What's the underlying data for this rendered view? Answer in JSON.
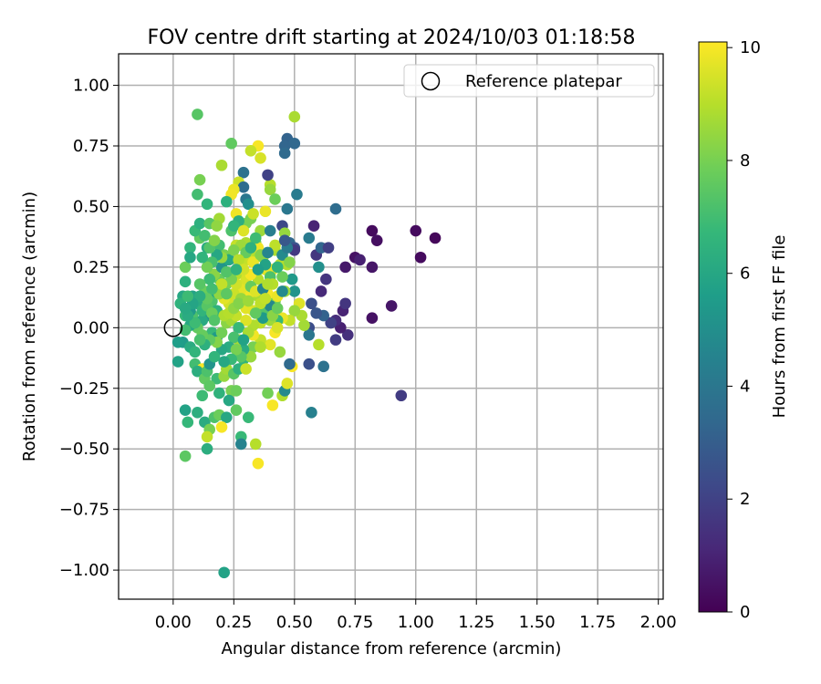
{
  "chart_data": {
    "type": "scatter",
    "title": "FOV centre drift starting at 2024/10/03 01:18:58",
    "xlabel": "Angular distance from reference (arcmin)",
    "ylabel": "Rotation from reference (arcmin)",
    "xlim": [
      -0.225,
      2.02
    ],
    "ylim": [
      -1.12,
      1.13
    ],
    "x_ticks": [
      0.0,
      0.25,
      0.5,
      0.75,
      1.0,
      1.25,
      1.5,
      1.75,
      2.0
    ],
    "x_tick_labels": [
      "0.00",
      "0.25",
      "0.50",
      "0.75",
      "1.00",
      "1.25",
      "1.50",
      "1.75",
      "2.00"
    ],
    "y_ticks": [
      1.0,
      0.75,
      0.5,
      0.25,
      0.0,
      -0.25,
      -0.5,
      -0.75,
      -1.0
    ],
    "y_tick_labels": [
      "1.00",
      "0.75",
      "0.50",
      "0.25",
      "0.00",
      "−0.25",
      "−0.50",
      "−0.75",
      "−1.00"
    ],
    "grid": true,
    "legend": {
      "position": "top-right",
      "entries": [
        "Reference platepar"
      ]
    },
    "reference_point": {
      "x": 0.0,
      "y": 0.0,
      "label": "Reference platepar"
    },
    "colorbar": {
      "label": "Hours from first FF file",
      "range": [
        0,
        10.1
      ],
      "ticks": [
        0,
        2,
        4,
        6,
        8,
        10
      ],
      "tick_labels": [
        "0",
        "2",
        "4",
        "6",
        "8",
        "10"
      ],
      "colormap": "viridis",
      "colors": [
        "#440154",
        "#482878",
        "#3e4989",
        "#31688e",
        "#26828e",
        "#1f9e89",
        "#35b779",
        "#6ece58",
        "#b5de2b",
        "#fde725"
      ]
    },
    "points": [
      [
        0.47,
        0.78,
        3.2
      ],
      [
        0.5,
        0.76,
        3.4
      ],
      [
        0.46,
        0.75,
        3.3
      ],
      [
        0.46,
        0.72,
        3.5
      ],
      [
        0.35,
        0.75,
        10.0
      ],
      [
        0.24,
        0.76,
        7.6
      ],
      [
        0.1,
        0.88,
        7.4
      ],
      [
        0.5,
        0.87,
        8.8
      ],
      [
        0.36,
        0.7,
        9.5
      ],
      [
        0.32,
        0.73,
        9.2
      ],
      [
        0.29,
        0.64,
        3.8
      ],
      [
        0.2,
        0.67,
        8.8
      ],
      [
        0.11,
        0.61,
        8.0
      ],
      [
        0.1,
        0.55,
        7.0
      ],
      [
        0.27,
        0.6,
        9.3
      ],
      [
        0.4,
        0.59,
        9.0
      ],
      [
        0.4,
        0.57,
        8.5
      ],
      [
        0.39,
        0.63,
        2.0
      ],
      [
        0.51,
        0.55,
        4.2
      ],
      [
        0.29,
        0.58,
        3.6
      ],
      [
        0.25,
        0.57,
        9.8
      ],
      [
        0.24,
        0.55,
        9.9
      ],
      [
        0.3,
        0.53,
        4.0
      ],
      [
        0.31,
        0.51,
        5.0
      ],
      [
        0.22,
        0.52,
        6.4
      ],
      [
        0.14,
        0.51,
        6.6
      ],
      [
        0.42,
        0.53,
        7.8
      ],
      [
        0.47,
        0.49,
        4.0
      ],
      [
        0.67,
        0.49,
        3.6
      ],
      [
        0.38,
        0.48,
        9.8
      ],
      [
        0.26,
        0.47,
        9.9
      ],
      [
        0.19,
        0.45,
        8.7
      ],
      [
        0.3,
        0.43,
        8.0
      ],
      [
        0.45,
        0.42,
        2.2
      ],
      [
        0.58,
        0.42,
        1.0
      ],
      [
        0.46,
        0.39,
        8.5
      ],
      [
        0.36,
        0.4,
        8.6
      ],
      [
        0.4,
        0.4,
        4.3
      ],
      [
        0.82,
        0.4,
        0.3
      ],
      [
        0.84,
        0.36,
        0.4
      ],
      [
        1.0,
        0.4,
        0.3
      ],
      [
        1.08,
        0.37,
        0.2
      ],
      [
        1.02,
        0.29,
        0.3
      ],
      [
        0.75,
        0.29,
        0.5
      ],
      [
        0.71,
        0.25,
        0.7
      ],
      [
        0.77,
        0.28,
        0.9
      ],
      [
        0.82,
        0.25,
        0.6
      ],
      [
        0.59,
        0.3,
        1.6
      ],
      [
        0.61,
        0.33,
        3.3
      ],
      [
        0.64,
        0.33,
        1.9
      ],
      [
        0.56,
        0.37,
        4.2
      ],
      [
        0.48,
        0.35,
        3.4
      ],
      [
        0.5,
        0.33,
        2.6
      ],
      [
        0.5,
        0.32,
        1.7
      ],
      [
        0.44,
        0.26,
        9.0
      ],
      [
        0.47,
        0.26,
        8.9
      ],
      [
        0.6,
        0.25,
        5.0
      ],
      [
        0.63,
        0.2,
        1.6
      ],
      [
        0.61,
        0.15,
        1.2
      ],
      [
        0.49,
        0.2,
        5.4
      ],
      [
        0.5,
        0.15,
        5.2
      ],
      [
        0.46,
        0.15,
        8.6
      ],
      [
        0.41,
        0.24,
        9.8
      ],
      [
        0.34,
        0.3,
        9.0
      ],
      [
        0.3,
        0.35,
        8.8
      ],
      [
        0.26,
        0.34,
        9.2
      ],
      [
        0.21,
        0.3,
        8.0
      ],
      [
        0.14,
        0.33,
        6.2
      ],
      [
        0.11,
        0.37,
        7.6
      ],
      [
        0.09,
        0.4,
        6.8
      ],
      [
        0.11,
        0.43,
        6.4
      ],
      [
        0.15,
        0.43,
        7.4
      ],
      [
        0.18,
        0.42,
        8.4
      ],
      [
        0.13,
        0.38,
        7.0
      ],
      [
        0.07,
        0.33,
        6.6
      ],
      [
        0.05,
        0.25,
        7.8
      ],
      [
        0.07,
        0.29,
        6.0
      ],
      [
        0.05,
        0.19,
        6.4
      ],
      [
        0.04,
        0.13,
        6.0
      ],
      [
        0.03,
        0.1,
        6.5
      ],
      [
        0.08,
        0.13,
        5.8
      ],
      [
        0.08,
        0.05,
        7.2
      ],
      [
        0.05,
        0.05,
        6.8
      ],
      [
        0.04,
        -0.06,
        5.5
      ],
      [
        0.02,
        -0.06,
        5.6
      ],
      [
        0.02,
        -0.14,
        5.8
      ],
      [
        0.07,
        -0.08,
        6.2
      ],
      [
        0.09,
        -0.1,
        6.6
      ],
      [
        0.09,
        -0.15,
        7.0
      ],
      [
        0.12,
        -0.17,
        10.0
      ],
      [
        0.1,
        -0.18,
        6.3
      ],
      [
        0.13,
        -0.21,
        7.6
      ],
      [
        0.14,
        -0.18,
        7.2
      ],
      [
        0.15,
        -0.15,
        5.2
      ],
      [
        0.18,
        -0.21,
        6.9
      ],
      [
        0.21,
        -0.2,
        8.5
      ],
      [
        0.22,
        -0.17,
        8.7
      ],
      [
        0.25,
        -0.19,
        7.4
      ],
      [
        0.27,
        -0.17,
        6.4
      ],
      [
        0.29,
        -0.13,
        6.6
      ],
      [
        0.24,
        -0.26,
        8.0
      ],
      [
        0.26,
        -0.26,
        7.8
      ],
      [
        0.23,
        -0.3,
        6.0
      ],
      [
        0.19,
        -0.27,
        6.5
      ],
      [
        0.15,
        -0.24,
        7.5
      ],
      [
        0.12,
        -0.28,
        6.9
      ],
      [
        0.1,
        -0.35,
        6.3
      ],
      [
        0.06,
        -0.39,
        6.7
      ],
      [
        0.05,
        -0.34,
        5.8
      ],
      [
        0.13,
        -0.39,
        6.2
      ],
      [
        0.15,
        -0.42,
        8.0
      ],
      [
        0.17,
        -0.37,
        7.2
      ],
      [
        0.19,
        -0.36,
        7.8
      ],
      [
        0.22,
        -0.37,
        6.0
      ],
      [
        0.26,
        -0.34,
        7.6
      ],
      [
        0.31,
        -0.37,
        6.8
      ],
      [
        0.2,
        -0.41,
        10.0
      ],
      [
        0.14,
        -0.45,
        9.2
      ],
      [
        0.14,
        -0.5,
        6.3
      ],
      [
        0.05,
        -0.53,
        7.5
      ],
      [
        0.28,
        -0.45,
        6.8
      ],
      [
        0.28,
        -0.48,
        4.5
      ],
      [
        0.34,
        -0.48,
        9.0
      ],
      [
        0.35,
        -0.56,
        10.0
      ],
      [
        0.21,
        -1.01,
        5.8
      ],
      [
        0.39,
        -0.27,
        7.9
      ],
      [
        0.41,
        -0.32,
        10.0
      ],
      [
        0.45,
        -0.28,
        8.9
      ],
      [
        0.46,
        -0.26,
        4.8
      ],
      [
        0.47,
        -0.23,
        9.6
      ],
      [
        0.49,
        -0.16,
        10.0
      ],
      [
        0.48,
        -0.15,
        3.5
      ],
      [
        0.56,
        -0.15,
        2.5
      ],
      [
        0.62,
        -0.16,
        3.8
      ],
      [
        0.57,
        -0.35,
        4.4
      ],
      [
        0.94,
        -0.28,
        1.8
      ],
      [
        0.72,
        -0.03,
        1.4
      ],
      [
        0.67,
        -0.05,
        1.8
      ],
      [
        0.7,
        0.07,
        1.0
      ],
      [
        0.71,
        0.1,
        1.6
      ],
      [
        0.69,
        0.0,
        0.9
      ],
      [
        0.67,
        0.03,
        1.3
      ],
      [
        0.65,
        0.02,
        2.0
      ],
      [
        0.82,
        0.04,
        0.5
      ],
      [
        0.9,
        0.09,
        0.6
      ],
      [
        0.62,
        0.05,
        3.2
      ],
      [
        0.59,
        0.06,
        2.7
      ],
      [
        0.57,
        0.1,
        2.5
      ],
      [
        0.56,
        0.0,
        2.4
      ],
      [
        0.56,
        -0.03,
        4.0
      ],
      [
        0.6,
        -0.07,
        9.0
      ],
      [
        0.54,
        0.01,
        8.7
      ],
      [
        0.53,
        0.05,
        8.8
      ],
      [
        0.52,
        0.1,
        9.6
      ],
      [
        0.5,
        0.07,
        8.5
      ],
      [
        0.48,
        0.03,
        9.2
      ],
      [
        0.45,
        0.04,
        9.8
      ],
      [
        0.43,
        0.03,
        6.8
      ],
      [
        0.42,
        -0.02,
        10.0
      ],
      [
        0.4,
        -0.07,
        9.7
      ],
      [
        0.44,
        -0.1,
        8.5
      ],
      [
        0.36,
        -0.05,
        9.2
      ],
      [
        0.33,
        -0.08,
        8.0
      ],
      [
        0.32,
        -0.12,
        8.5
      ],
      [
        0.3,
        -0.17,
        9.3
      ],
      [
        0.29,
        -0.09,
        6.2
      ],
      [
        0.27,
        -0.05,
        8.7
      ],
      [
        0.33,
        -0.03,
        9.9
      ],
      [
        0.36,
        0.02,
        9.1
      ],
      [
        0.38,
        0.07,
        7.3
      ],
      [
        0.4,
        0.03,
        8.6
      ],
      [
        0.42,
        0.11,
        8.0
      ],
      [
        0.39,
        0.14,
        10.0
      ],
      [
        0.43,
        0.13,
        9.8
      ],
      [
        0.45,
        0.15,
        4.8
      ],
      [
        0.35,
        0.13,
        8.8
      ],
      [
        0.33,
        0.07,
        9.5
      ],
      [
        0.29,
        0.1,
        10.0
      ],
      [
        0.31,
        0.14,
        9.9
      ],
      [
        0.28,
        0.16,
        9.7
      ],
      [
        0.3,
        0.2,
        9.5
      ],
      [
        0.26,
        0.22,
        9.0
      ],
      [
        0.22,
        0.18,
        8.0
      ],
      [
        0.19,
        0.2,
        7.7
      ],
      [
        0.17,
        0.22,
        8.3
      ],
      [
        0.15,
        0.2,
        6.9
      ],
      [
        0.13,
        0.15,
        7.8
      ],
      [
        0.11,
        0.18,
        7.4
      ],
      [
        0.16,
        0.11,
        7.2
      ],
      [
        0.18,
        0.07,
        6.5
      ],
      [
        0.14,
        0.05,
        5.0
      ],
      [
        0.12,
        0.03,
        6.1
      ],
      [
        0.1,
        0.0,
        7.6
      ],
      [
        0.07,
        0.01,
        6.0
      ],
      [
        0.05,
        -0.01,
        7.0
      ],
      [
        0.16,
        -0.02,
        6.8
      ],
      [
        0.18,
        -0.04,
        5.5
      ],
      [
        0.2,
        -0.02,
        7.9
      ],
      [
        0.22,
        0.02,
        8.3
      ],
      [
        0.24,
        0.03,
        8.7
      ],
      [
        0.26,
        0.05,
        9.2
      ],
      [
        0.23,
        0.1,
        9.4
      ],
      [
        0.21,
        0.12,
        9.7
      ],
      [
        0.25,
        0.14,
        9.3
      ],
      [
        0.28,
        0.12,
        8.5
      ],
      [
        0.2,
        0.25,
        5.2
      ],
      [
        0.23,
        0.28,
        6.0
      ],
      [
        0.19,
        0.34,
        7.0
      ],
      [
        0.24,
        0.4,
        7.2
      ],
      [
        0.28,
        0.34,
        8.6
      ],
      [
        0.31,
        0.28,
        9.3
      ],
      [
        0.33,
        0.27,
        9.8
      ],
      [
        0.34,
        0.35,
        8.1
      ],
      [
        0.35,
        0.33,
        9.9
      ],
      [
        0.37,
        0.29,
        8.6
      ],
      [
        0.38,
        0.24,
        9.7
      ],
      [
        0.4,
        0.21,
        7.2
      ],
      [
        0.41,
        0.18,
        9.0
      ],
      [
        0.35,
        0.2,
        9.0
      ],
      [
        0.32,
        0.22,
        10.0
      ],
      [
        0.28,
        0.27,
        9.2
      ],
      [
        0.3,
        0.31,
        7.7
      ],
      [
        0.27,
        0.44,
        6.3
      ],
      [
        0.32,
        0.45,
        8.0
      ],
      [
        0.34,
        0.37,
        6.9
      ],
      [
        0.36,
        0.3,
        8.2
      ],
      [
        0.42,
        0.32,
        8.8
      ],
      [
        0.45,
        0.3,
        4.8
      ],
      [
        0.47,
        0.33,
        4.2
      ],
      [
        0.48,
        0.27,
        8.2
      ],
      [
        0.45,
        0.21,
        7.8
      ],
      [
        0.43,
        0.25,
        6.5
      ],
      [
        0.38,
        0.26,
        5.8
      ],
      [
        0.4,
        0.09,
        4.7
      ],
      [
        0.37,
        0.04,
        5.5
      ],
      [
        0.33,
        0.01,
        8.9
      ],
      [
        0.3,
        0.03,
        9.6
      ],
      [
        0.27,
        0.0,
        6.8
      ],
      [
        0.25,
        -0.04,
        7.1
      ],
      [
        0.23,
        -0.08,
        6.2
      ],
      [
        0.2,
        -0.09,
        6.0
      ],
      [
        0.18,
        -0.06,
        8.2
      ],
      [
        0.15,
        -0.05,
        7.6
      ],
      [
        0.13,
        -0.07,
        6.4
      ],
      [
        0.12,
        -0.03,
        7.7
      ],
      [
        0.09,
        0.02,
        6.9
      ],
      [
        0.07,
        0.07,
        5.4
      ],
      [
        0.1,
        0.1,
        6.2
      ],
      [
        0.12,
        0.07,
        6.6
      ],
      [
        0.14,
        0.09,
        7.4
      ],
      [
        0.16,
        0.06,
        7.8
      ],
      [
        0.17,
        0.15,
        6.1
      ],
      [
        0.19,
        0.14,
        8.4
      ],
      [
        0.21,
        0.05,
        8.9
      ],
      [
        0.23,
        0.06,
        9.0
      ],
      [
        0.25,
        0.08,
        8.4
      ],
      [
        0.26,
        0.18,
        9.4
      ],
      [
        0.24,
        0.2,
        8.0
      ],
      [
        0.22,
        0.23,
        7.3
      ],
      [
        0.2,
        0.29,
        8.5
      ],
      [
        0.18,
        0.3,
        6.0
      ],
      [
        0.16,
        0.27,
        7.1
      ],
      [
        0.14,
        0.25,
        7.9
      ],
      [
        0.12,
        0.29,
        6.6
      ],
      [
        0.15,
        0.33,
        7.3
      ],
      [
        0.17,
        0.36,
        8.2
      ],
      [
        0.25,
        0.32,
        8.1
      ],
      [
        0.27,
        0.28,
        9.0
      ],
      [
        0.29,
        0.24,
        9.4
      ],
      [
        0.32,
        0.17,
        7.7
      ],
      [
        0.34,
        0.15,
        9.6
      ],
      [
        0.36,
        0.1,
        9.1
      ],
      [
        0.37,
        0.16,
        4.6
      ],
      [
        0.39,
        0.18,
        8.9
      ],
      [
        0.41,
        0.05,
        8.3
      ],
      [
        0.43,
        0.0,
        9.5
      ],
      [
        0.31,
        -0.02,
        8.8
      ],
      [
        0.28,
        -0.12,
        7.4
      ],
      [
        0.26,
        -0.09,
        8.0
      ],
      [
        0.24,
        -0.13,
        6.8
      ],
      [
        0.21,
        -0.14,
        6.0
      ],
      [
        0.17,
        -0.12,
        6.6
      ],
      [
        0.11,
        -0.05,
        7.1
      ],
      [
        0.06,
        0.05,
        6.2
      ],
      [
        0.17,
        0.03,
        7.3
      ],
      [
        0.3,
        0.08,
        9.7
      ],
      [
        0.34,
        0.06,
        7.6
      ],
      [
        0.36,
        -0.08,
        8.9
      ],
      [
        0.29,
        -0.05,
        5.8
      ],
      [
        0.25,
        0.42,
        6.6
      ],
      [
        0.29,
        0.4,
        9.6
      ],
      [
        0.33,
        0.47,
        9.3
      ],
      [
        0.42,
        0.34,
        9.1
      ],
      [
        0.46,
        0.36,
        2.8
      ],
      [
        0.39,
        0.31,
        4.6
      ],
      [
        0.32,
        0.33,
        6.4
      ],
      [
        0.43,
        0.08,
        7.7
      ],
      [
        0.38,
        0.12,
        9.2
      ],
      [
        0.35,
        0.24,
        5.6
      ],
      [
        0.26,
        0.24,
        6.5
      ],
      [
        0.2,
        0.18,
        9.2
      ],
      [
        0.16,
        0.16,
        7.0
      ],
      [
        0.14,
        0.12,
        7.6
      ],
      [
        0.11,
        0.13,
        6.3
      ],
      [
        0.08,
        0.1,
        5.9
      ],
      [
        0.06,
        0.13,
        6.9
      ],
      [
        0.05,
        0.08,
        6.1
      ],
      [
        0.27,
        0.1,
        8.2
      ],
      [
        0.31,
        0.11,
        8.6
      ],
      [
        0.22,
        0.14,
        7.5
      ]
    ]
  }
}
